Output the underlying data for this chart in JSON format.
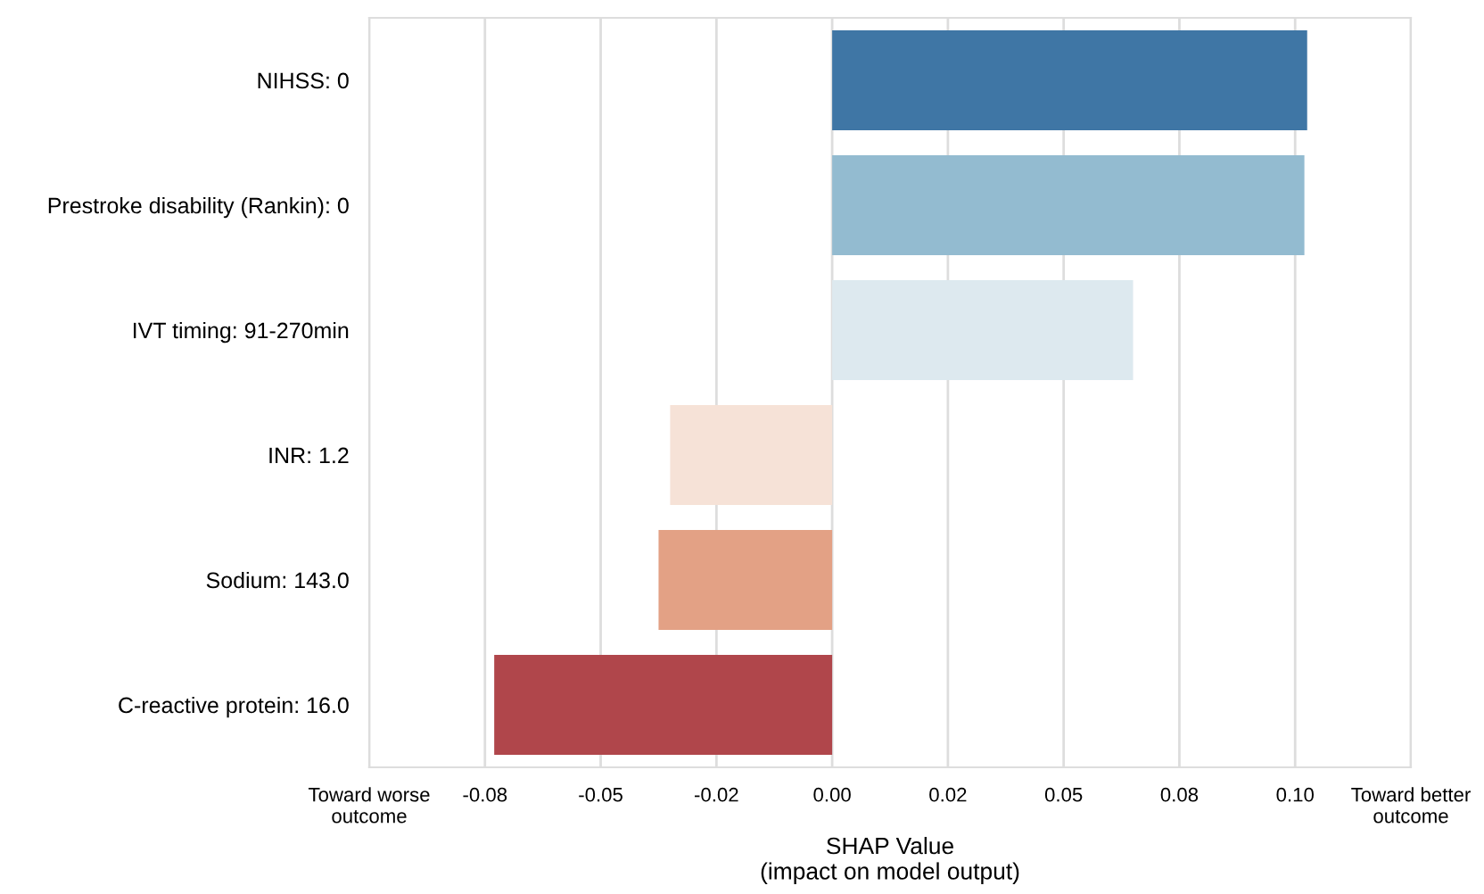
{
  "chart_data": {
    "type": "bar",
    "orientation": "horizontal",
    "categories": [
      "NIHSS: 0",
      "Prestroke disability (Rankin): 0",
      "IVT timing: 91-270min",
      "INR: 1.2",
      "Sodium: 143.0",
      "C-reactive protein: 16.0"
    ],
    "values": [
      0.1026,
      0.102,
      0.065,
      -0.035,
      -0.0375,
      -0.073
    ],
    "colors": [
      "#3f76a5",
      "#93bbd0",
      "#dde9ef",
      "#f6e2d7",
      "#e3a185",
      "#b0464b"
    ],
    "xlabel": "SHAP Value\n(impact on model output)",
    "xlim": [
      -0.1,
      0.125
    ],
    "xticks": [
      {
        "value": -0.1,
        "label": "Toward worse\noutcome"
      },
      {
        "value": -0.075,
        "label": "-0.08"
      },
      {
        "value": -0.05,
        "label": "-0.05"
      },
      {
        "value": -0.025,
        "label": "-0.02"
      },
      {
        "value": 0,
        "label": "0.00"
      },
      {
        "value": 0.025,
        "label": "0.02"
      },
      {
        "value": 0.05,
        "label": "0.05"
      },
      {
        "value": 0.075,
        "label": "0.08"
      },
      {
        "value": 0.1,
        "label": "0.10"
      },
      {
        "value": 0.125,
        "label": "Toward better\noutcome"
      }
    ],
    "grid": "x"
  }
}
